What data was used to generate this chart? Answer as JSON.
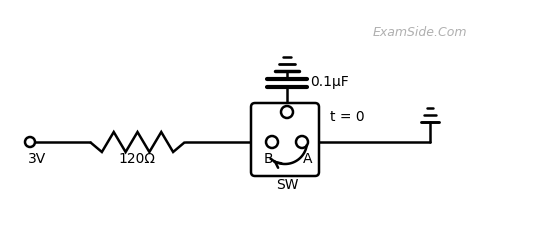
{
  "bg_color": "#ffffff",
  "line_color": "#000000",
  "text_color": "#000000",
  "watermark_color": "#b0b0b0",
  "voltage_label": "3V",
  "resistor_label": "120Ω",
  "sw_label": "SW",
  "node_B": "B",
  "node_A": "A",
  "capacitor_label": "0.1μF",
  "time_label": "t = 0",
  "watermark": "ExamSide.Com",
  "fig_w": 5.41,
  "fig_h": 2.37,
  "dpi": 100
}
